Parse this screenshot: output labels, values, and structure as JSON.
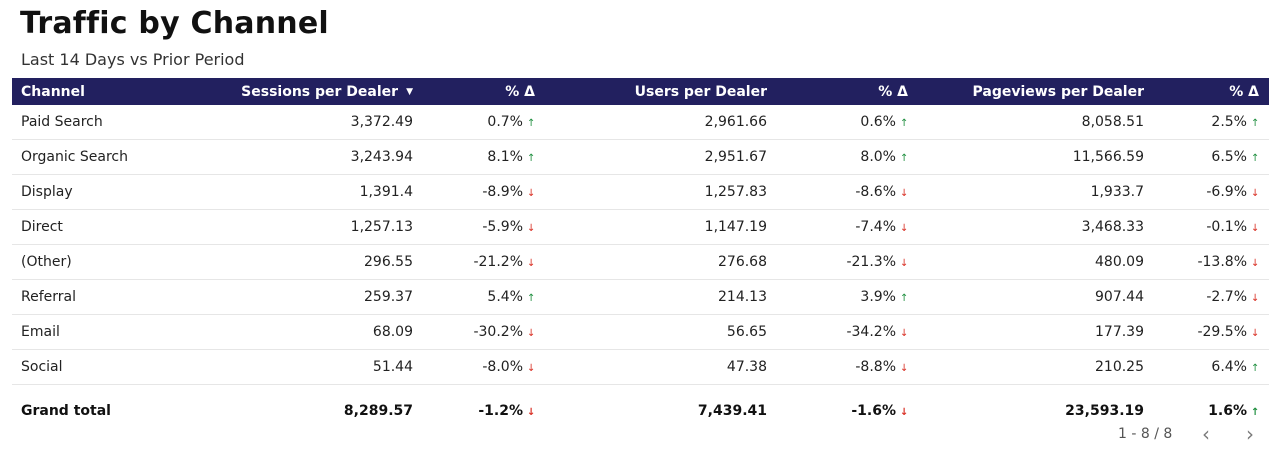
{
  "header": {
    "title": "Traffic by Channel",
    "subtitle": "Last 14 Days vs Prior Period"
  },
  "table": {
    "columns": [
      "Channel",
      "Sessions per Dealer",
      "% Δ",
      "Users per Dealer",
      "% Δ",
      "Pageviews per Dealer",
      "% Δ"
    ],
    "sort_icon": "caret-down-icon",
    "rows": [
      {
        "channel": "Paid Search",
        "sessions": "3,372.49",
        "sessions_pct": "0.7%",
        "sessions_dir": "up",
        "users": "2,961.66",
        "users_pct": "0.6%",
        "users_dir": "up",
        "pageviews": "8,058.51",
        "pageviews_pct": "2.5%",
        "pageviews_dir": "up"
      },
      {
        "channel": "Organic Search",
        "sessions": "3,243.94",
        "sessions_pct": "8.1%",
        "sessions_dir": "up",
        "users": "2,951.67",
        "users_pct": "8.0%",
        "users_dir": "up",
        "pageviews": "11,566.59",
        "pageviews_pct": "6.5%",
        "pageviews_dir": "up"
      },
      {
        "channel": "Display",
        "sessions": "1,391.4",
        "sessions_pct": "-8.9%",
        "sessions_dir": "down",
        "users": "1,257.83",
        "users_pct": "-8.6%",
        "users_dir": "down",
        "pageviews": "1,933.7",
        "pageviews_pct": "-6.9%",
        "pageviews_dir": "down"
      },
      {
        "channel": "Direct",
        "sessions": "1,257.13",
        "sessions_pct": "-5.9%",
        "sessions_dir": "down",
        "users": "1,147.19",
        "users_pct": "-7.4%",
        "users_dir": "down",
        "pageviews": "3,468.33",
        "pageviews_pct": "-0.1%",
        "pageviews_dir": "down"
      },
      {
        "channel": "(Other)",
        "sessions": "296.55",
        "sessions_pct": "-21.2%",
        "sessions_dir": "down",
        "users": "276.68",
        "users_pct": "-21.3%",
        "users_dir": "down",
        "pageviews": "480.09",
        "pageviews_pct": "-13.8%",
        "pageviews_dir": "down"
      },
      {
        "channel": "Referral",
        "sessions": "259.37",
        "sessions_pct": "5.4%",
        "sessions_dir": "up",
        "users": "214.13",
        "users_pct": "3.9%",
        "users_dir": "up",
        "pageviews": "907.44",
        "pageviews_pct": "-2.7%",
        "pageviews_dir": "down"
      },
      {
        "channel": "Email",
        "sessions": "68.09",
        "sessions_pct": "-30.2%",
        "sessions_dir": "down",
        "users": "56.65",
        "users_pct": "-34.2%",
        "users_dir": "down",
        "pageviews": "177.39",
        "pageviews_pct": "-29.5%",
        "pageviews_dir": "down"
      },
      {
        "channel": "Social",
        "sessions": "51.44",
        "sessions_pct": "-8.0%",
        "sessions_dir": "down",
        "users": "47.38",
        "users_pct": "-8.8%",
        "users_dir": "down",
        "pageviews": "210.25",
        "pageviews_pct": "6.4%",
        "pageviews_dir": "up"
      }
    ],
    "total": {
      "channel": "Grand total",
      "sessions": "8,289.57",
      "sessions_pct": "-1.2%",
      "sessions_dir": "down",
      "users": "7,439.41",
      "users_pct": "-1.6%",
      "users_dir": "down",
      "pageviews": "23,593.19",
      "pageviews_pct": "1.6%",
      "pageviews_dir": "up"
    }
  },
  "pagination": {
    "label": "1 - 8 / 8",
    "prev_icon": "chevron-left-icon",
    "next_icon": "chevron-right-icon"
  },
  "colors": {
    "header_bg": "#22205f",
    "up": "#1e8e3e",
    "down": "#d93025"
  }
}
